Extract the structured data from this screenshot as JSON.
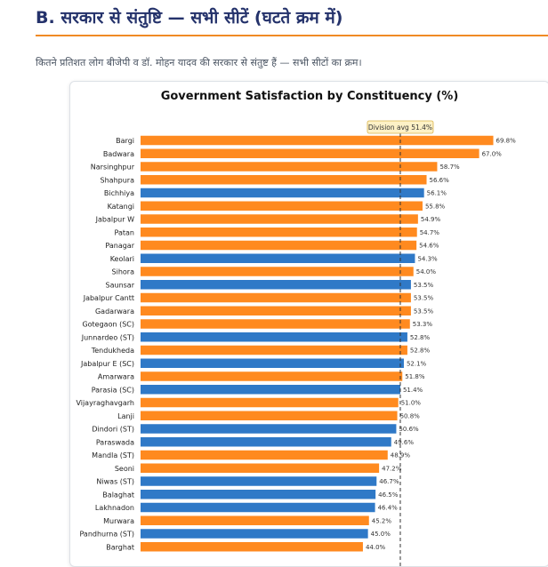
{
  "page": {
    "heading": "B. सरकार से संतुष्टि — सभी सीटें (घटते क्रम में)",
    "subtitle": "कितने प्रतिशत लोग बीजेपी व डॉ. मोहन यादव की सरकार से संतुष्ट हैं — सभी सीटों का क्रम।"
  },
  "colors": {
    "accent": "#f08a24",
    "bar_orange": "#ff8a1f",
    "bar_blue": "#2f79c7",
    "heading": "#24326b"
  },
  "chart_data": {
    "type": "bar",
    "orientation": "horizontal",
    "title": "Government Satisfaction by Constituency (%)",
    "xlabel": "",
    "ylabel": "",
    "xlim": [
      0,
      72
    ],
    "reference_line": {
      "label": "Division avg 51.4%",
      "value": 51.4,
      "style": "dashed"
    },
    "categories": [
      "Bargi",
      "Badwara",
      "Narsinghpur",
      "Shahpura",
      "Bichhiya",
      "Katangi",
      "Jabalpur W",
      "Patan",
      "Panagar",
      "Keolari",
      "Sihora",
      "Saunsar",
      "Jabalpur Cantt",
      "Gadarwara",
      "Gotegaon (SC)",
      "Junnardeo (ST)",
      "Tendukheda",
      "Jabalpur E (SC)",
      "Amarwara",
      "Parasia (SC)",
      "Vijayraghavgarh",
      "Lanji",
      "Dindori (ST)",
      "Paraswada",
      "Mandla (ST)",
      "Seoni",
      "Niwas (ST)",
      "Balaghat",
      "Lakhnadon",
      "Murwara",
      "Pandhurna (ST)",
      "Barghat"
    ],
    "values": [
      69.8,
      67.0,
      58.7,
      56.6,
      56.1,
      55.8,
      54.9,
      54.7,
      54.6,
      54.3,
      54.0,
      53.5,
      53.5,
      53.5,
      53.3,
      52.8,
      52.8,
      52.1,
      51.8,
      51.4,
      51.0,
      50.8,
      50.6,
      49.6,
      48.9,
      47.2,
      46.7,
      46.5,
      46.4,
      45.2,
      45.0,
      44.0
    ],
    "value_labels": [
      "69.8%",
      "67.0%",
      "58.7%",
      "56.6%",
      "56.1%",
      "55.8%",
      "54.9%",
      "54.7%",
      "54.6%",
      "54.3%",
      "54.0%",
      "53.5%",
      "53.5%",
      "53.5%",
      "53.3%",
      "52.8%",
      "52.8%",
      "52.1%",
      "51.8%",
      "51.4%",
      "51.0%",
      "50.8%",
      "50.6%",
      "49.6%",
      "48.9%",
      "47.2%",
      "46.7%",
      "46.5%",
      "46.4%",
      "45.2%",
      "45.0%",
      "44.0%"
    ],
    "bar_colors": [
      "orange",
      "orange",
      "orange",
      "orange",
      "blue",
      "orange",
      "orange",
      "orange",
      "orange",
      "blue",
      "orange",
      "blue",
      "orange",
      "orange",
      "orange",
      "blue",
      "orange",
      "blue",
      "orange",
      "blue",
      "orange",
      "orange",
      "blue",
      "blue",
      "orange",
      "orange",
      "blue",
      "blue",
      "blue",
      "orange",
      "blue",
      "orange"
    ],
    "grid": false,
    "legend": "none"
  }
}
